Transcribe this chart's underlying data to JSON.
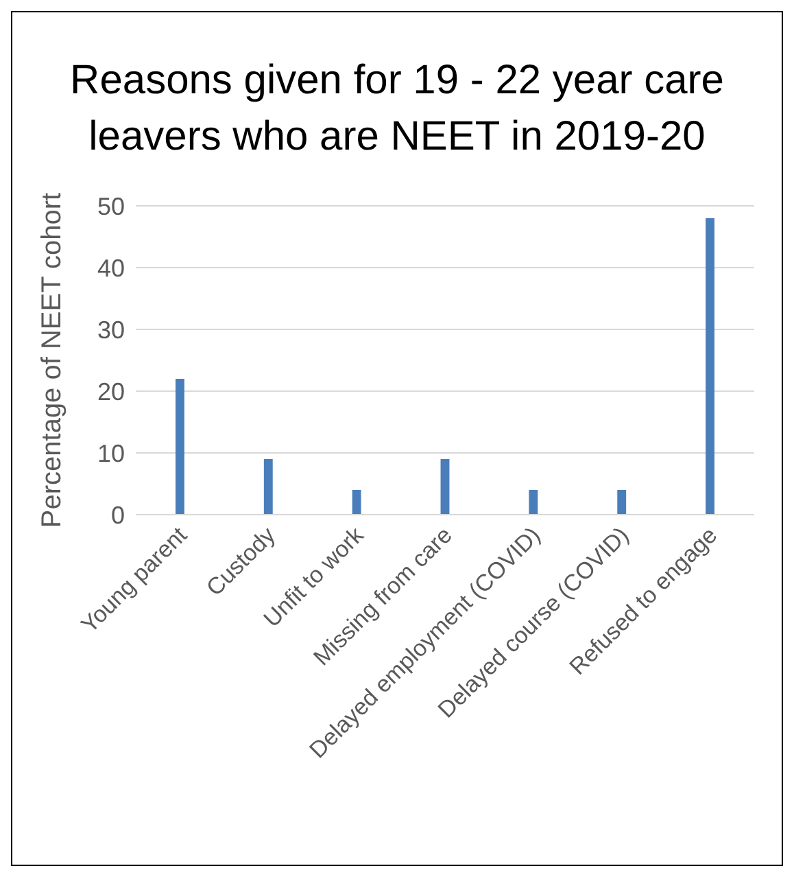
{
  "chart_data": {
    "type": "bar",
    "title": "Reasons given for 19 - 22 year care leavers who are NEET in 2019-20",
    "ylabel": "Percentage of NEET cohort",
    "categories": [
      "Young parent",
      "Custody",
      "Unfit to work",
      "Missing from care",
      "Delayed employment (COVID)",
      "Delayed course (COVID)",
      "Refused to engage"
    ],
    "values": [
      22,
      9,
      4,
      9,
      4,
      4,
      48
    ],
    "color": "#4a7ebb",
    "ylim": [
      0,
      50
    ],
    "yticks": [
      0,
      10,
      20,
      30,
      40,
      50
    ],
    "grid": "y"
  }
}
